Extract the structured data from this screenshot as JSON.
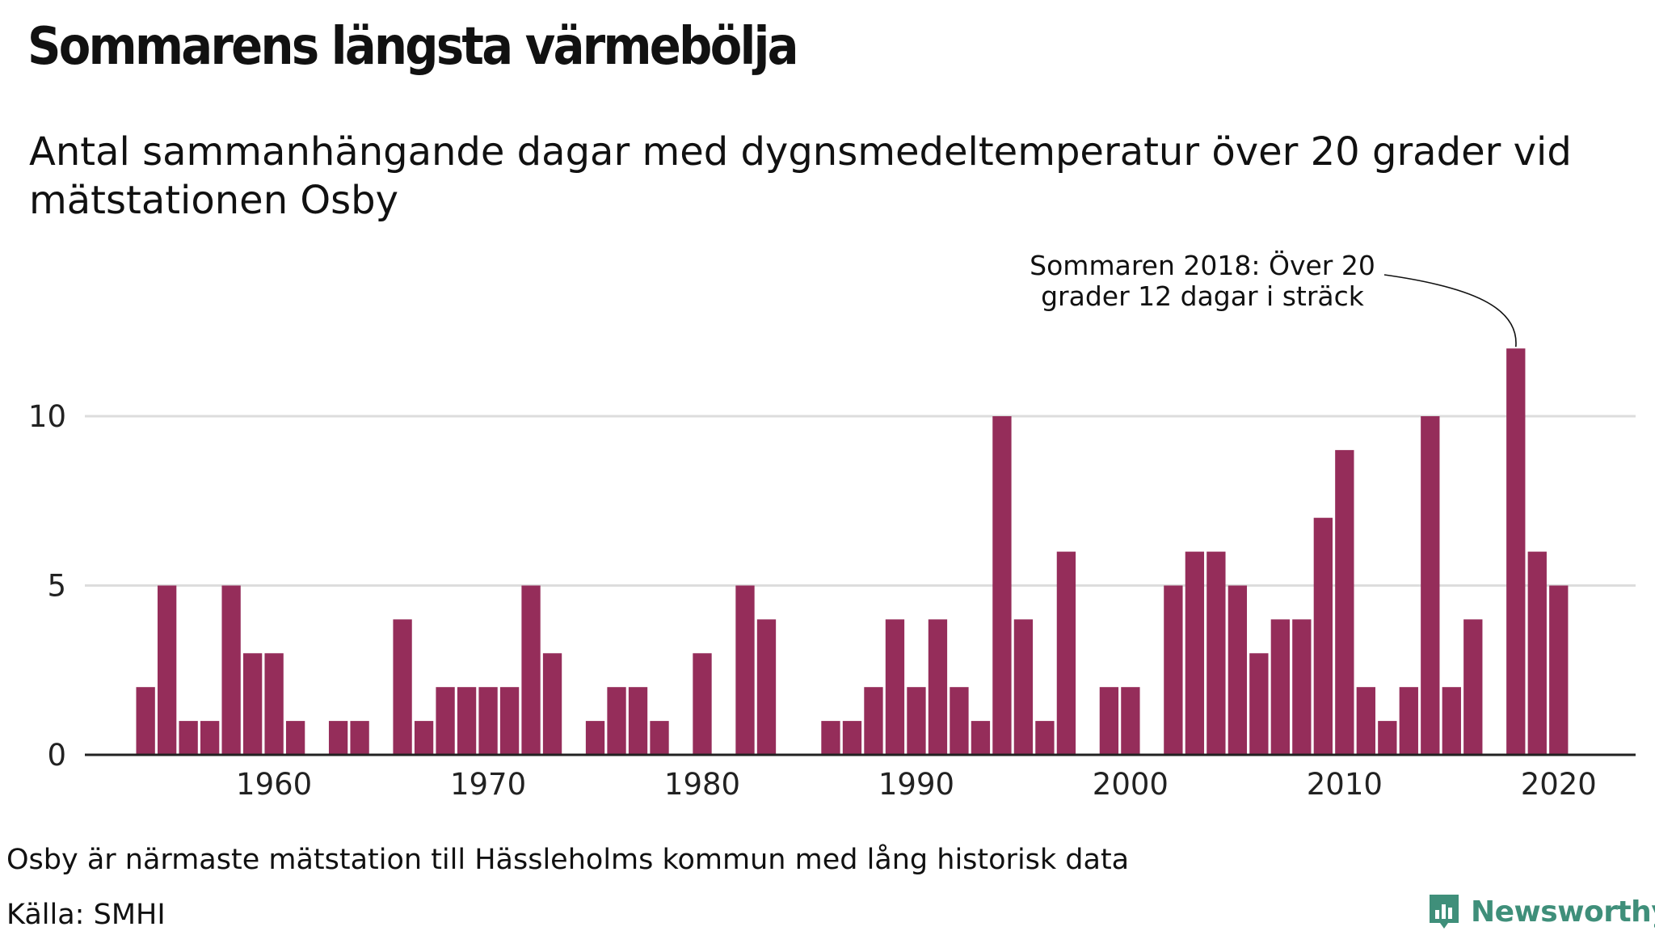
{
  "header": {
    "title": "Sommarens längsta värmebölja",
    "subtitle": "Antal sammanhängande dagar med dygnsmedeltemperatur över 20 grader vid mätstationen Osby"
  },
  "footer": {
    "note": "Osby är närmaste mätstation till Hässleholms kommun med lång historisk data",
    "source": "Källa: SMHI"
  },
  "logo": {
    "name": "Newsworthy",
    "color": "#3f8f7a"
  },
  "chart_data": {
    "type": "bar",
    "title": "Sommarens längsta värmebölja",
    "subtitle": "Antal sammanhängande dagar med dygnsmedeltemperatur över 20 grader vid mätstationen Osby",
    "x": [
      1954,
      1955,
      1956,
      1957,
      1958,
      1959,
      1960,
      1961,
      1962,
      1963,
      1964,
      1965,
      1966,
      1967,
      1968,
      1969,
      1970,
      1971,
      1972,
      1973,
      1974,
      1975,
      1976,
      1977,
      1978,
      1979,
      1980,
      1981,
      1982,
      1983,
      1984,
      1985,
      1986,
      1987,
      1988,
      1989,
      1990,
      1991,
      1992,
      1993,
      1994,
      1995,
      1996,
      1997,
      1998,
      1999,
      2000,
      2001,
      2002,
      2003,
      2004,
      2005,
      2006,
      2007,
      2008,
      2009,
      2010,
      2011,
      2012,
      2013,
      2014,
      2015,
      2016,
      2017,
      2018,
      2019,
      2020
    ],
    "values": [
      2,
      5,
      1,
      1,
      5,
      3,
      3,
      1,
      0,
      1,
      1,
      0,
      4,
      1,
      2,
      2,
      2,
      2,
      5,
      3,
      0,
      1,
      2,
      2,
      1,
      0,
      3,
      0,
      5,
      4,
      0,
      0,
      1,
      1,
      2,
      4,
      2,
      4,
      2,
      1,
      10,
      4,
      1,
      6,
      0,
      2,
      2,
      0,
      5,
      6,
      6,
      5,
      3,
      4,
      4,
      7,
      9,
      2,
      1,
      2,
      10,
      2,
      4,
      0,
      12,
      6,
      5
    ],
    "xticks": [
      1960,
      1970,
      1980,
      1990,
      2000,
      2010,
      2020
    ],
    "yticks": [
      0,
      5,
      10
    ],
    "ylim": [
      0,
      12
    ],
    "xlim": [
      1947.2,
      2024.5
    ],
    "bar_color": "#952d5a",
    "grid": "horizontal",
    "annotation": {
      "year": 2018,
      "value": 12,
      "lines": [
        "Sommaren 2018: Över 20",
        "grader 12 dagar i sträck"
      ]
    }
  }
}
